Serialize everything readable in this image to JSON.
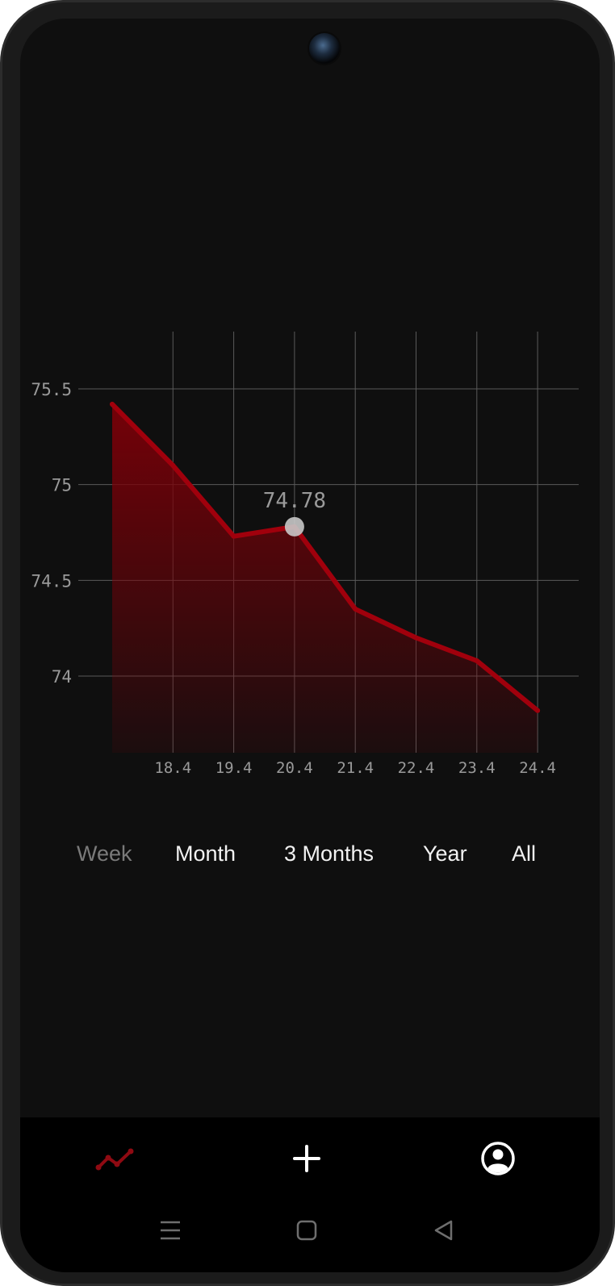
{
  "chart_data": {
    "type": "area",
    "x": [
      "17.4",
      "18.4",
      "19.4",
      "20.4",
      "21.4",
      "22.4",
      "23.4",
      "24.4"
    ],
    "x_tick_labels": [
      "18.4",
      "19.4",
      "20.4",
      "21.4",
      "22.4",
      "23.4",
      "24.4"
    ],
    "values": [
      75.42,
      75.1,
      74.73,
      74.78,
      74.35,
      74.2,
      74.08,
      73.82
    ],
    "y_ticks": [
      "75.5",
      "75",
      "74.5",
      "74"
    ],
    "ylim": [
      73.6,
      75.8
    ],
    "grid": true,
    "highlight": {
      "index": 3,
      "label": "74.78"
    },
    "colors": {
      "line": "#a0000c",
      "fill": "#7a0008",
      "grid": "#5a5a5a",
      "tick_text": "#9a9a9a"
    }
  },
  "ranges": {
    "items": [
      {
        "label": "Week",
        "active": false
      },
      {
        "label": "Month",
        "active": true
      },
      {
        "label": "3 Months",
        "active": true
      },
      {
        "label": "Year",
        "active": true
      },
      {
        "label": "All",
        "active": true
      }
    ]
  },
  "nav": {
    "items": [
      {
        "icon": "trend-line-icon",
        "color": "#8f0a12"
      },
      {
        "icon": "plus-icon",
        "color": "#ffffff"
      },
      {
        "icon": "account-circle-icon",
        "color": "#ffffff"
      }
    ]
  },
  "system_nav": {
    "items": [
      "menu-icon",
      "home-square-icon",
      "back-triangle-icon"
    ]
  }
}
